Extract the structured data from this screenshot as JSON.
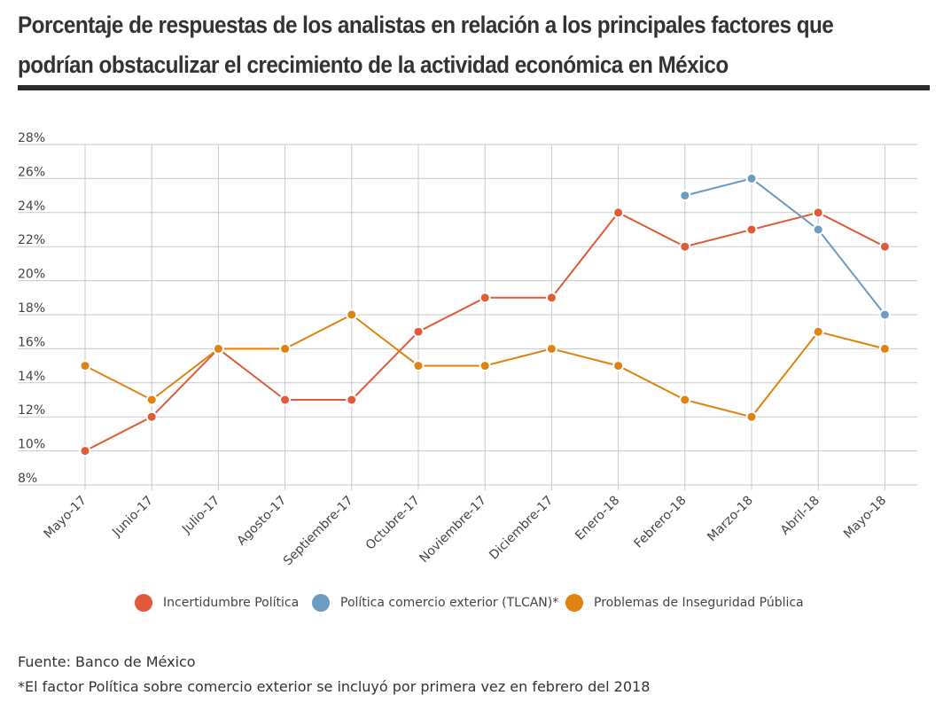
{
  "title": "Porcentaje de respuestas de los analistas en relación a los principales factores que podrían obstaculizar el crecimiento de la actividad económica en México",
  "chart_data": {
    "type": "line",
    "categories": [
      "Mayo-17",
      "Junio-17",
      "Julio-17",
      "Agosto-17",
      "Septiembre-17",
      "Octubre-17",
      "Noviembre-17",
      "Diciembre-17",
      "Enero-18",
      "Febrero-18",
      "Marzo-18",
      "Abril-18",
      "Mayo-18"
    ],
    "y_ticks": [
      "8%",
      "10%",
      "12%",
      "14%",
      "16%",
      "18%",
      "20%",
      "22%",
      "24%",
      "26%",
      "28%"
    ],
    "ylim": [
      8,
      28
    ],
    "grid": true,
    "legend_position": "bottom",
    "series": [
      {
        "name": "Incertidumbre Política",
        "color": "#e05a38",
        "values": [
          10,
          12,
          16,
          13,
          13,
          17,
          19,
          19,
          24,
          22,
          23,
          24,
          22
        ]
      },
      {
        "name": "Política comercio exterior (TLCAN)*",
        "color": "#6c9cc0",
        "values": [
          null,
          null,
          null,
          null,
          null,
          null,
          null,
          null,
          null,
          25,
          26,
          23,
          18
        ]
      },
      {
        "name": "Problemas de Inseguridad Pública",
        "color": "#e0820f",
        "values": [
          15,
          13,
          16,
          16,
          18,
          15,
          15,
          16,
          15,
          13,
          12,
          17,
          16
        ]
      }
    ]
  },
  "footer": {
    "source": "Fuente:  Banco de México",
    "note": "*El factor Política sobre comercio exterior se incluyó por primera vez en febrero del 2018"
  }
}
